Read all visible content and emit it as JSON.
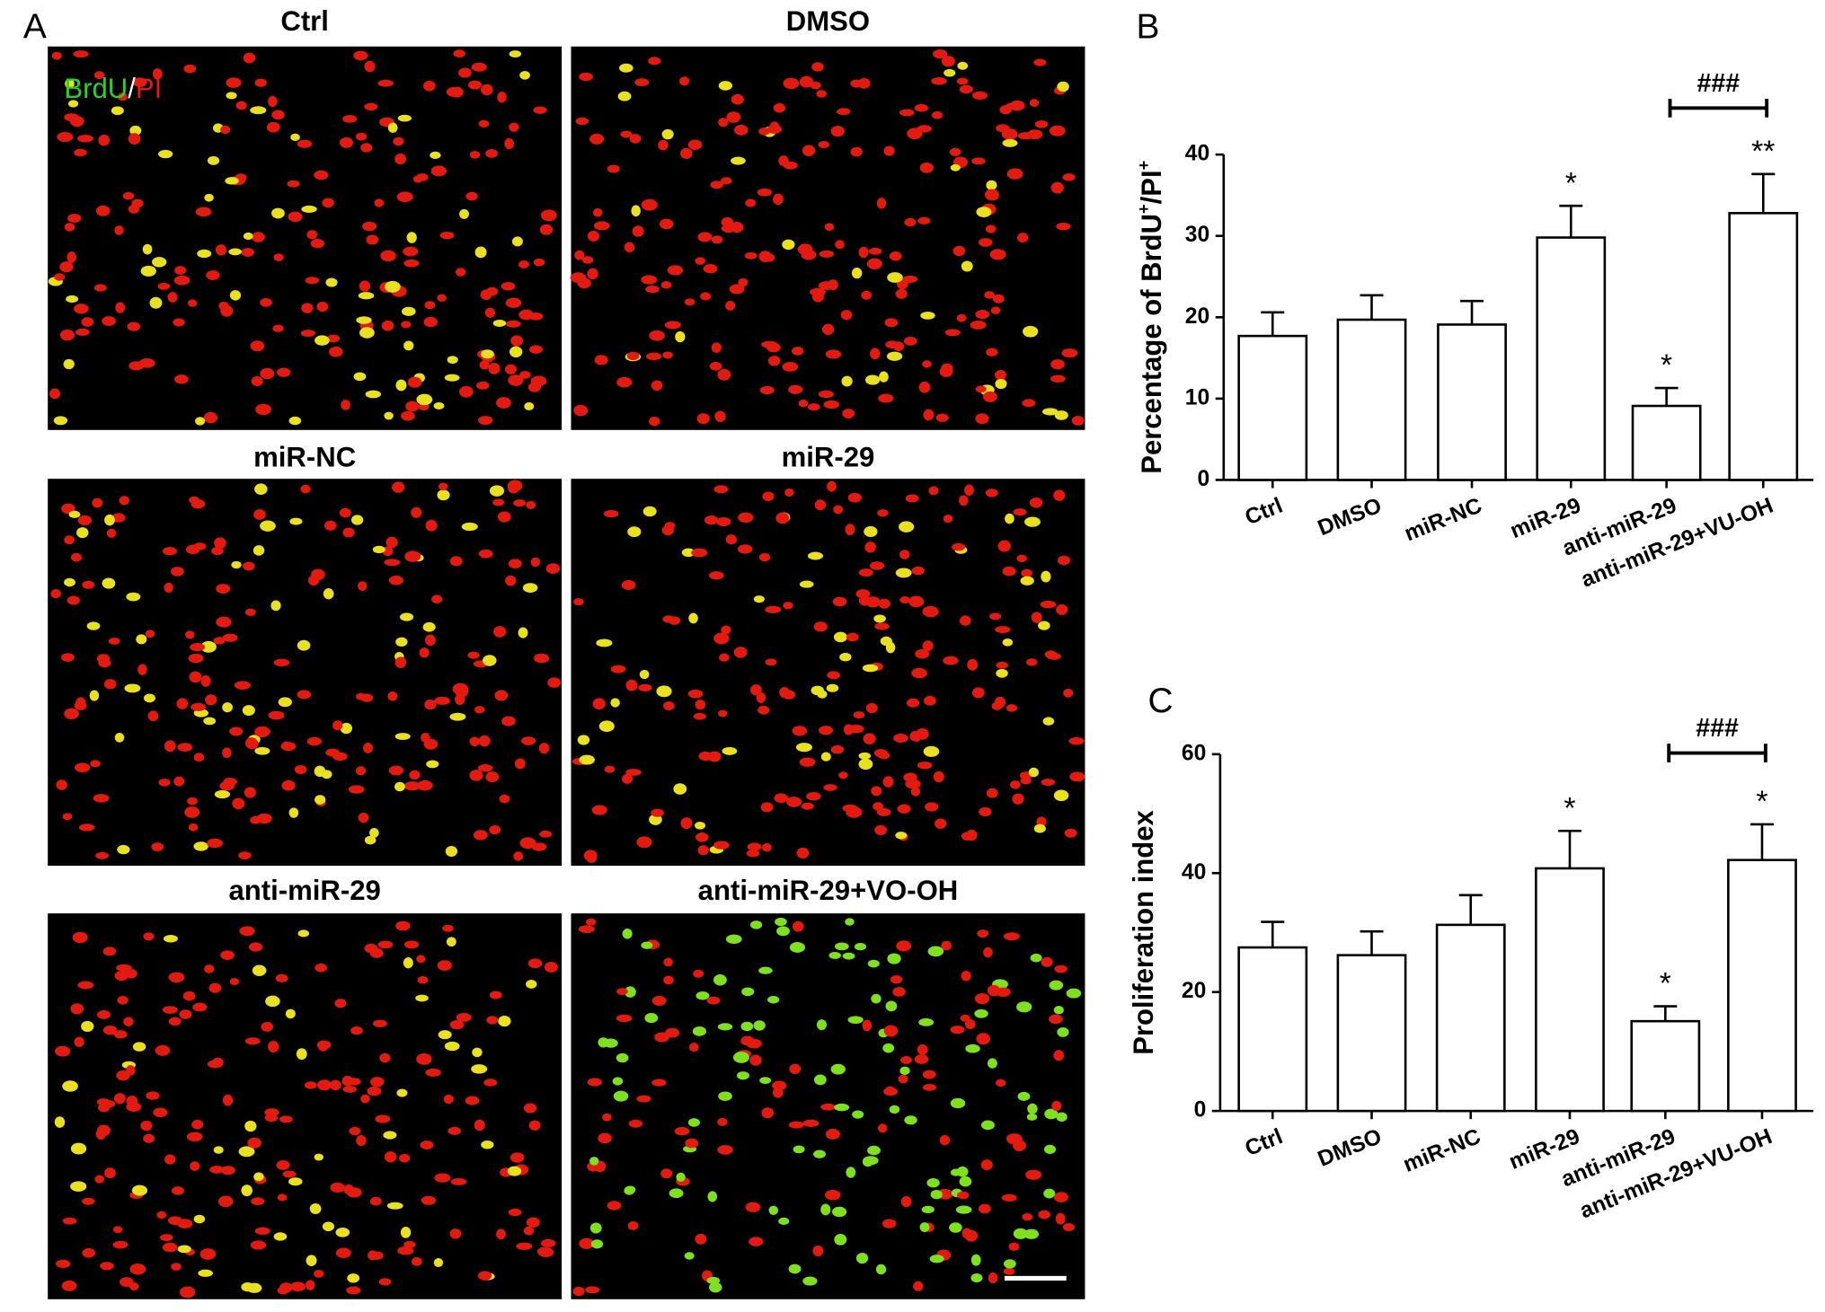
{
  "figure": {
    "panel_a": {
      "letter": "A",
      "stain_label": [
        "BrdU",
        "/",
        "PI"
      ],
      "images": [
        "Ctrl",
        "DMSO",
        "miR-NC",
        "miR-29",
        "anti-miR-29",
        "anti-miR-29+VO-OH"
      ]
    },
    "charts": [
      {
        "type": "bar",
        "letter": "B",
        "y_label_parts": [
          "Percentage of BrdU",
          "+",
          "/PI",
          "+"
        ],
        "categories": [
          "Ctrl",
          "DMSO",
          "miR-NC",
          "miR-29",
          "anti-miR-29",
          "anti-miR-29+VU-OH"
        ],
        "values": [
          17.7,
          19.7,
          19.1,
          29.8,
          9.1,
          32.8
        ],
        "errors": [
          2.9,
          3.0,
          2.9,
          3.9,
          2.2,
          4.8
        ],
        "ylim": [
          0,
          40
        ],
        "yticks": [
          0,
          10,
          20,
          30,
          40
        ],
        "color": "#ffffff",
        "markers": [
          {
            "index": 3,
            "label": "*"
          },
          {
            "index": 4,
            "label": "*"
          },
          {
            "index": 5,
            "label": "**"
          }
        ],
        "bracket": {
          "from": 4,
          "to": 5,
          "label": "###"
        }
      },
      {
        "type": "bar",
        "letter": "C",
        "y_label_parts": [
          "Proliferation index"
        ],
        "categories": [
          "Ctrl",
          "DMSO",
          "miR-NC",
          "miR-29",
          "anti-miR-29",
          "anti-miR-29+VU-OH"
        ],
        "values": [
          27.5,
          26.2,
          31.3,
          40.8,
          15.1,
          42.2
        ],
        "errors": [
          4.3,
          4.0,
          5.0,
          6.3,
          2.5,
          6.0
        ],
        "ylim": [
          0,
          60
        ],
        "yticks": [
          0,
          20,
          40,
          60
        ],
        "color": "#ffffff",
        "markers": [
          {
            "index": 3,
            "label": "*"
          },
          {
            "index": 4,
            "label": "*"
          },
          {
            "index": 5,
            "label": "*"
          }
        ],
        "bracket": {
          "from": 4,
          "to": 5,
          "label": "###"
        }
      }
    ]
  }
}
